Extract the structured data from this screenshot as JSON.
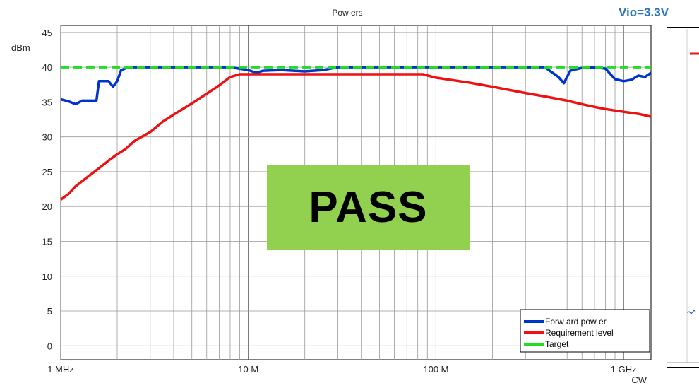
{
  "chart_data": {
    "type": "line",
    "title": "Pow ers",
    "ylabel": "dBm",
    "xlabel": "CW",
    "x_scale": "log",
    "xlim": [
      1,
      1400
    ],
    "ylim": [
      -2,
      46
    ],
    "yticks": [
      0,
      5,
      10,
      15,
      20,
      25,
      30,
      35,
      40,
      45
    ],
    "xticks": [
      {
        "value": 1,
        "label": "1 MHz"
      },
      {
        "value": 10,
        "label": "10 M"
      },
      {
        "value": 100,
        "label": "100 M"
      },
      {
        "value": 1000,
        "label": "1 GHz"
      }
    ],
    "grid": true,
    "legend_position": "bottom-right",
    "series": [
      {
        "name": "Forw ard pow er",
        "color": "#0033cc",
        "points": [
          [
            1,
            35.4
          ],
          [
            1.1,
            35.1
          ],
          [
            1.2,
            34.7
          ],
          [
            1.3,
            35.2
          ],
          [
            1.45,
            35.2
          ],
          [
            1.55,
            35.2
          ],
          [
            1.6,
            38.0
          ],
          [
            1.8,
            38.0
          ],
          [
            1.9,
            37.2
          ],
          [
            2.0,
            38.0
          ],
          [
            2.1,
            39.6
          ],
          [
            2.3,
            40.0
          ],
          [
            4,
            40.0
          ],
          [
            6,
            40.0
          ],
          [
            8,
            40.0
          ],
          [
            10,
            39.6
          ],
          [
            11,
            39.2
          ],
          [
            12,
            39.5
          ],
          [
            15,
            39.6
          ],
          [
            20,
            39.4
          ],
          [
            25,
            39.6
          ],
          [
            30,
            40.0
          ],
          [
            60,
            40.0
          ],
          [
            100,
            40.0
          ],
          [
            200,
            40.0
          ],
          [
            380,
            40.0
          ],
          [
            450,
            38.6
          ],
          [
            480,
            37.7
          ],
          [
            520,
            39.5
          ],
          [
            600,
            39.9
          ],
          [
            700,
            40.0
          ],
          [
            800,
            39.8
          ],
          [
            900,
            38.3
          ],
          [
            1000,
            38.0
          ],
          [
            1100,
            38.2
          ],
          [
            1200,
            38.8
          ],
          [
            1300,
            38.6
          ],
          [
            1400,
            39.2
          ]
        ]
      },
      {
        "name": "Requirement level",
        "color": "#ee1111",
        "points": [
          [
            1,
            21.0
          ],
          [
            1.1,
            21.8
          ],
          [
            1.2,
            22.9
          ],
          [
            1.4,
            24.3
          ],
          [
            1.6,
            25.5
          ],
          [
            1.8,
            26.6
          ],
          [
            2,
            27.5
          ],
          [
            2.2,
            28.2
          ],
          [
            2.5,
            29.5
          ],
          [
            3,
            30.7
          ],
          [
            3.5,
            32.2
          ],
          [
            4,
            33.2
          ],
          [
            5,
            34.8
          ],
          [
            6,
            36.2
          ],
          [
            7,
            37.4
          ],
          [
            8,
            38.6
          ],
          [
            9,
            39.0
          ],
          [
            20,
            39.0
          ],
          [
            50,
            39.0
          ],
          [
            85,
            39.0
          ],
          [
            100,
            38.5
          ],
          [
            150,
            37.8
          ],
          [
            200,
            37.2
          ],
          [
            300,
            36.3
          ],
          [
            400,
            35.7
          ],
          [
            500,
            35.2
          ],
          [
            600,
            34.7
          ],
          [
            700,
            34.3
          ],
          [
            800,
            34.0
          ],
          [
            1000,
            33.6
          ],
          [
            1200,
            33.3
          ],
          [
            1400,
            32.9
          ]
        ]
      },
      {
        "name": "Target",
        "color": "#22dd22",
        "points": [
          [
            1,
            40.0
          ],
          [
            1400,
            40.0
          ]
        ]
      }
    ]
  },
  "annotations": {
    "vio_label": "Vio=3.3V",
    "pass_label": "PASS"
  }
}
